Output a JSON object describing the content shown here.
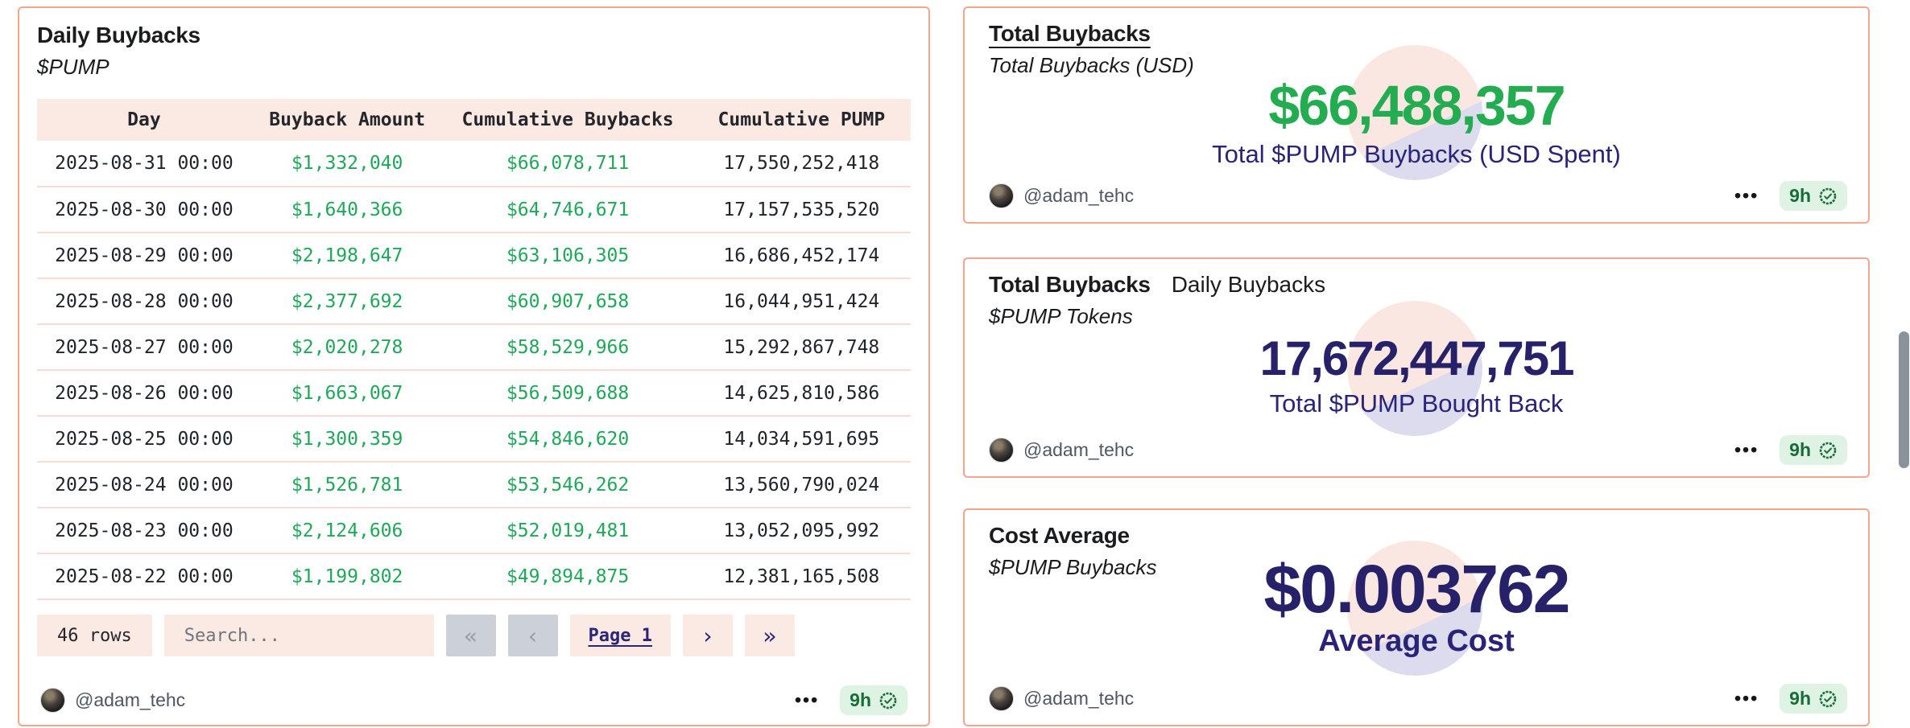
{
  "colors": {
    "card_border": "#F3A58E",
    "header_pink": "#FBE9E4",
    "row_divider": "#F8DCD4",
    "table_green": "#1FA85A",
    "big_green": "#23AC50",
    "big_navy": "#262168",
    "caption_navy": "#2A2478",
    "disabled_button_bg": "#CBD1D7",
    "badge_bg": "#DFF3E4",
    "badge_fg": "#176C38",
    "footer_gray": "#4E5763",
    "scrollbar_gray": "#8A939B"
  },
  "left_card": {
    "title": "Daily Buybacks",
    "subtitle": "$PUMP",
    "table": {
      "columns": [
        "Day",
        "Buyback Amount",
        "Cumulative Buybacks",
        "Cumulative PUMP"
      ],
      "rows": [
        [
          "2025-08-31 00:00",
          "$1,332,040",
          "$66,078,711",
          "17,550,252,418"
        ],
        [
          "2025-08-30 00:00",
          "$1,640,366",
          "$64,746,671",
          "17,157,535,520"
        ],
        [
          "2025-08-29 00:00",
          "$2,198,647",
          "$63,106,305",
          "16,686,452,174"
        ],
        [
          "2025-08-28 00:00",
          "$2,377,692",
          "$60,907,658",
          "16,044,951,424"
        ],
        [
          "2025-08-27 00:00",
          "$2,020,278",
          "$58,529,966",
          "15,292,867,748"
        ],
        [
          "2025-08-26 00:00",
          "$1,663,067",
          "$56,509,688",
          "14,625,810,586"
        ],
        [
          "2025-08-25 00:00",
          "$1,300,359",
          "$54,846,620",
          "14,034,591,695"
        ],
        [
          "2025-08-24 00:00",
          "$1,526,781",
          "$53,546,262",
          "13,560,790,024"
        ],
        [
          "2025-08-23 00:00",
          "$2,124,606",
          "$52,019,481",
          "13,052,095,992"
        ],
        [
          "2025-08-22 00:00",
          "$1,199,802",
          "$49,894,875",
          "12,381,165,508"
        ]
      ]
    },
    "pagination": {
      "rows_label": "46 rows",
      "search_placeholder": "Search...",
      "first_icon": "«",
      "prev_icon": "‹",
      "page_label": "Page 1",
      "next_icon": "›",
      "last_icon": "»"
    },
    "footer": {
      "handle": "@adam_tehc",
      "menu_icon": "•••",
      "age": "9h"
    }
  },
  "stat_cards": [
    {
      "title": "Total Buybacks",
      "title_alt": "",
      "subtitle": "Total Buybacks (USD)",
      "value": "$66,488,357",
      "caption": "Total $PUMP Buybacks (USD Spent)",
      "footer": {
        "handle": "@adam_tehc",
        "menu_icon": "•••",
        "age": "9h"
      }
    },
    {
      "title": "Total Buybacks",
      "title_alt": "Daily Buybacks",
      "subtitle": "$PUMP Tokens",
      "value": "17,672,447,751",
      "caption": "Total $PUMP Bought Back",
      "footer": {
        "handle": "@adam_tehc",
        "menu_icon": "•••",
        "age": "9h"
      }
    },
    {
      "title": "Cost Average",
      "title_alt": "",
      "subtitle": "$PUMP Buybacks",
      "value": "$0.003762",
      "caption": "Average Cost",
      "footer": {
        "handle": "@adam_tehc",
        "menu_icon": "•••",
        "age": "9h"
      }
    }
  ]
}
